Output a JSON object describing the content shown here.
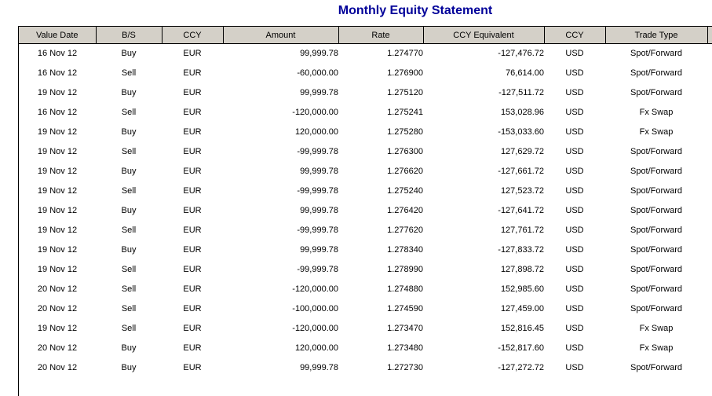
{
  "title": "Monthly Equity Statement",
  "colors": {
    "title": "#000099",
    "header_bg": "#d4d0c8",
    "border": "#000000",
    "page_bg": "#ffffff"
  },
  "table": {
    "columns": [
      {
        "name": "value-date",
        "label": "Value Date",
        "align": "center"
      },
      {
        "name": "buy-sell",
        "label": "B/S",
        "align": "center"
      },
      {
        "name": "ccy",
        "label": "CCY",
        "align": "center"
      },
      {
        "name": "amount",
        "label": "Amount",
        "align": "right"
      },
      {
        "name": "rate",
        "label": "Rate",
        "align": "right"
      },
      {
        "name": "ccy-equivalent",
        "label": "CCY Equivalent",
        "align": "right"
      },
      {
        "name": "ccy-2",
        "label": "CCY",
        "align": "center"
      },
      {
        "name": "trade-type",
        "label": "Trade Type",
        "align": "center"
      },
      {
        "name": "next-column-cutoff",
        "label": "",
        "align": "center"
      }
    ],
    "rows": [
      [
        "16 Nov 12",
        "Buy",
        "EUR",
        "99,999.78",
        "1.274770",
        "-127,476.72",
        "USD",
        "Spot/Forward",
        ""
      ],
      [
        "16 Nov 12",
        "Sell",
        "EUR",
        "-60,000.00",
        "1.276900",
        "76,614.00",
        "USD",
        "Spot/Forward",
        ""
      ],
      [
        "19 Nov 12",
        "Buy",
        "EUR",
        "99,999.78",
        "1.275120",
        "-127,511.72",
        "USD",
        "Spot/Forward",
        ""
      ],
      [
        "16 Nov 12",
        "Sell",
        "EUR",
        "-120,000.00",
        "1.275241",
        "153,028.96",
        "USD",
        "Fx Swap",
        ""
      ],
      [
        "19 Nov 12",
        "Buy",
        "EUR",
        "120,000.00",
        "1.275280",
        "-153,033.60",
        "USD",
        "Fx Swap",
        ""
      ],
      [
        "19 Nov 12",
        "Sell",
        "EUR",
        "-99,999.78",
        "1.276300",
        "127,629.72",
        "USD",
        "Spot/Forward",
        ""
      ],
      [
        "19 Nov 12",
        "Buy",
        "EUR",
        "99,999.78",
        "1.276620",
        "-127,661.72",
        "USD",
        "Spot/Forward",
        ""
      ],
      [
        "19 Nov 12",
        "Sell",
        "EUR",
        "-99,999.78",
        "1.275240",
        "127,523.72",
        "USD",
        "Spot/Forward",
        ""
      ],
      [
        "19 Nov 12",
        "Buy",
        "EUR",
        "99,999.78",
        "1.276420",
        "-127,641.72",
        "USD",
        "Spot/Forward",
        ""
      ],
      [
        "19 Nov 12",
        "Sell",
        "EUR",
        "-99,999.78",
        "1.277620",
        "127,761.72",
        "USD",
        "Spot/Forward",
        ""
      ],
      [
        "19 Nov 12",
        "Buy",
        "EUR",
        "99,999.78",
        "1.278340",
        "-127,833.72",
        "USD",
        "Spot/Forward",
        ""
      ],
      [
        "19 Nov 12",
        "Sell",
        "EUR",
        "-99,999.78",
        "1.278990",
        "127,898.72",
        "USD",
        "Spot/Forward",
        ""
      ],
      [
        "20 Nov 12",
        "Sell",
        "EUR",
        "-120,000.00",
        "1.274880",
        "152,985.60",
        "USD",
        "Spot/Forward",
        ""
      ],
      [
        "20 Nov 12",
        "Sell",
        "EUR",
        "-100,000.00",
        "1.274590",
        "127,459.00",
        "USD",
        "Spot/Forward",
        ""
      ],
      [
        "19 Nov 12",
        "Sell",
        "EUR",
        "-120,000.00",
        "1.273470",
        "152,816.45",
        "USD",
        "Fx Swap",
        ""
      ],
      [
        "20 Nov 12",
        "Buy",
        "EUR",
        "120,000.00",
        "1.273480",
        "-152,817.60",
        "USD",
        "Fx Swap",
        ""
      ],
      [
        "20 Nov 12",
        "Buy",
        "EUR",
        "99,999.78",
        "1.272730",
        "-127,272.72",
        "USD",
        "Spot/Forward",
        ""
      ]
    ]
  }
}
